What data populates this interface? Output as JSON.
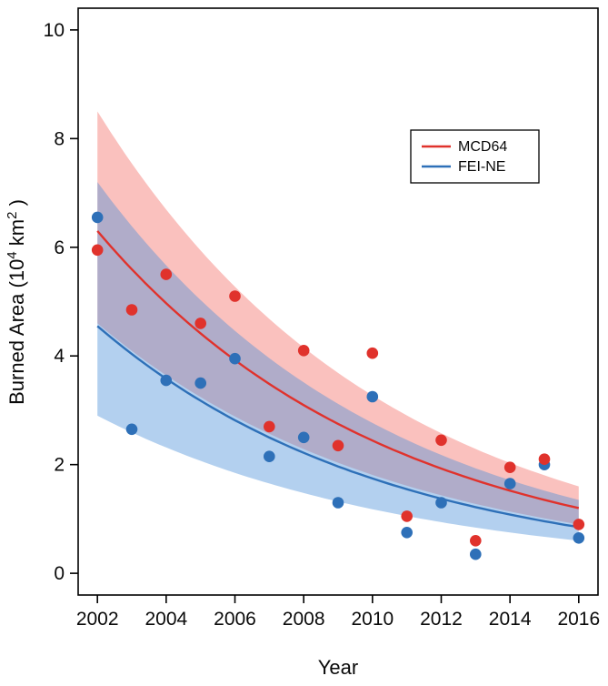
{
  "figure": {
    "background": "#ffffff",
    "ylabel_parts": [
      {
        "text": "Burned Area (10",
        "sup": false
      },
      {
        "text": "4",
        "sup": true
      },
      {
        "text": " km",
        "sup": false
      },
      {
        "text": "2",
        "sup": true
      },
      {
        "text": " )",
        "sup": false
      }
    ]
  },
  "chart_data": {
    "type": "scatter",
    "title": "",
    "xlabel": "Year",
    "ylabel": "Burned Area (10^4 km^2)",
    "x": [
      2002,
      2003,
      2004,
      2005,
      2006,
      2007,
      2008,
      2009,
      2010,
      2011,
      2012,
      2013,
      2014,
      2015,
      2016
    ],
    "x_range": [
      2002,
      2016
    ],
    "y_range": [
      0,
      10
    ],
    "x_ticks": [
      2002,
      2004,
      2006,
      2008,
      2010,
      2012,
      2014,
      2016
    ],
    "y_ticks": [
      0,
      2,
      4,
      6,
      8,
      10
    ],
    "grid": false,
    "legend_position": "upper-right",
    "series": [
      {
        "name": "MCD64",
        "color": "#e0322c",
        "band_color": "#f26b63",
        "band_opacity": 0.42,
        "points": [
          5.95,
          4.85,
          5.5,
          4.6,
          5.1,
          2.7,
          4.1,
          2.35,
          4.05,
          1.05,
          2.45,
          0.6,
          1.95,
          2.1,
          0.9
        ],
        "fit": {
          "type": "exponential",
          "start_value": 6.3,
          "end_value": 1.2
        },
        "band": {
          "upper_start": 8.5,
          "upper_end": 1.6,
          "lower_start": 4.6,
          "lower_end": 0.9
        }
      },
      {
        "name": "FEI-NE",
        "color": "#2e70b8",
        "band_color": "#4a90d9",
        "band_opacity": 0.42,
        "points": [
          6.55,
          2.65,
          3.55,
          3.5,
          3.95,
          2.15,
          2.5,
          1.3,
          3.25,
          0.75,
          1.3,
          0.35,
          1.65,
          2.0,
          0.65
        ],
        "fit": {
          "type": "exponential",
          "start_value": 4.55,
          "end_value": 0.85
        },
        "band": {
          "upper_start": 7.2,
          "upper_end": 1.35,
          "lower_start": 2.9,
          "lower_end": 0.6
        }
      }
    ]
  }
}
